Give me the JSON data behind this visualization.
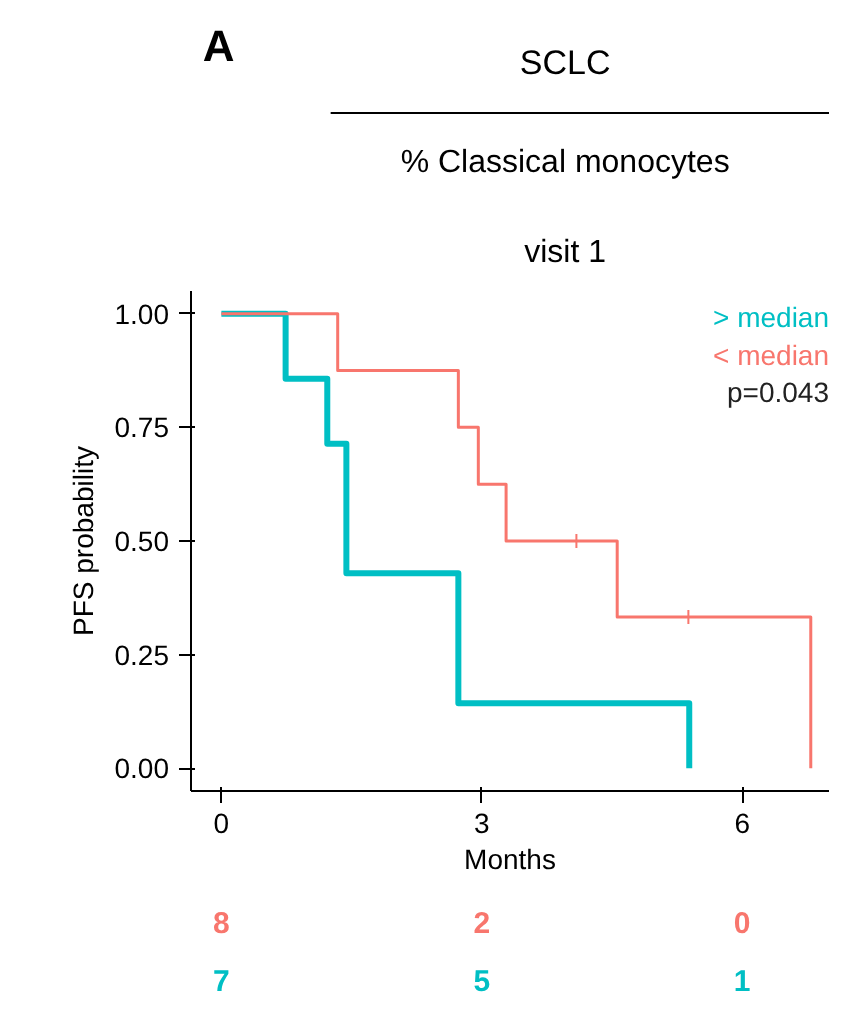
{
  "chart_data": {
    "type": "step",
    "title": "SCLC",
    "subtitle": "% Classical monocytes",
    "xlabel": "Months",
    "ylabel": "PFS probability",
    "annotations": [
      "A",
      "visit 1",
      "p=0.043",
      "8",
      "2",
      "0",
      "7",
      "5",
      "1"
    ],
    "xlim": [
      -0.35,
      7.0
    ],
    "ylim": [
      -0.05,
      1.05
    ],
    "xticks": [
      0,
      3,
      6
    ],
    "yticks": [
      {
        "value": 0,
        "label": "0.00"
      },
      {
        "value": 0.25,
        "label": "0.25"
      },
      {
        "value": 0.5,
        "label": "0.50"
      },
      {
        "value": 0.75,
        "label": "0.75"
      },
      {
        "value": 1,
        "label": "1.00"
      }
    ],
    "grid": false,
    "legend": "top right",
    "series": [
      {
        "name": "> median",
        "color": "#00bfc4",
        "x": [
          0,
          0.74,
          1.22,
          1.44,
          2.73,
          5.39
        ],
        "values": [
          1,
          0.857,
          0.714,
          0.429,
          0.143,
          0
        ]
      },
      {
        "name": "< median",
        "color": "#f8766d",
        "x": [
          0,
          1.34,
          2.73,
          2.96,
          3.28,
          4.56,
          6.79
        ],
        "values": [
          1,
          0.875,
          0.75,
          0.625,
          0.5,
          0.333,
          0
        ]
      },
      {
        "type": "scatter",
        "marker": "cross",
        "color": "#f8766d",
        "x": [
          4.09,
          5.38
        ],
        "values": [
          0.5,
          0.333
        ]
      }
    ]
  }
}
